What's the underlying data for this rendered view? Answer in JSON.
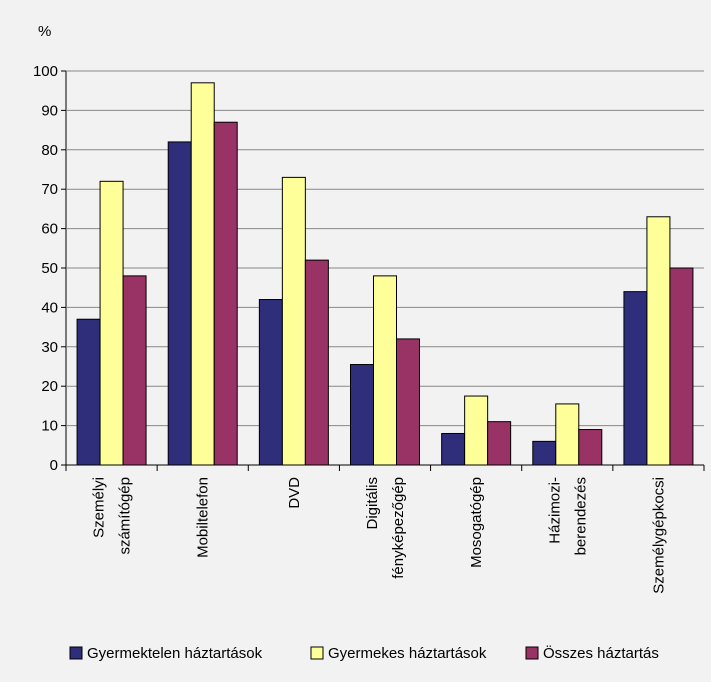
{
  "chart_data": {
    "type": "bar",
    "ylabel": "%",
    "ylim": [
      0,
      100
    ],
    "yticks": [
      0,
      10,
      20,
      30,
      40,
      50,
      60,
      70,
      80,
      90,
      100
    ],
    "grid": true,
    "legend_position": "bottom",
    "categories": [
      [
        "Személyi",
        "számítógép"
      ],
      [
        "Mobiltelefon"
      ],
      [
        "DVD"
      ],
      [
        "Digitális",
        "fényképezőgép"
      ],
      [
        "Mosogatógép"
      ],
      [
        "Házimozi-",
        "berendezés"
      ],
      [
        "Személygépkocsi"
      ]
    ],
    "series": [
      {
        "name": "Gyermektelen háztartások",
        "color": "#2e2e7a",
        "values": [
          37,
          82,
          42,
          25.5,
          8,
          6,
          44
        ]
      },
      {
        "name": "Gyermekes háztartások",
        "color": "#ffff99",
        "values": [
          72,
          97,
          73,
          48,
          17.5,
          15.5,
          63
        ]
      },
      {
        "name": "Összes háztartás",
        "color": "#993366",
        "values": [
          48,
          87,
          52,
          32,
          11,
          9,
          50
        ]
      }
    ]
  }
}
